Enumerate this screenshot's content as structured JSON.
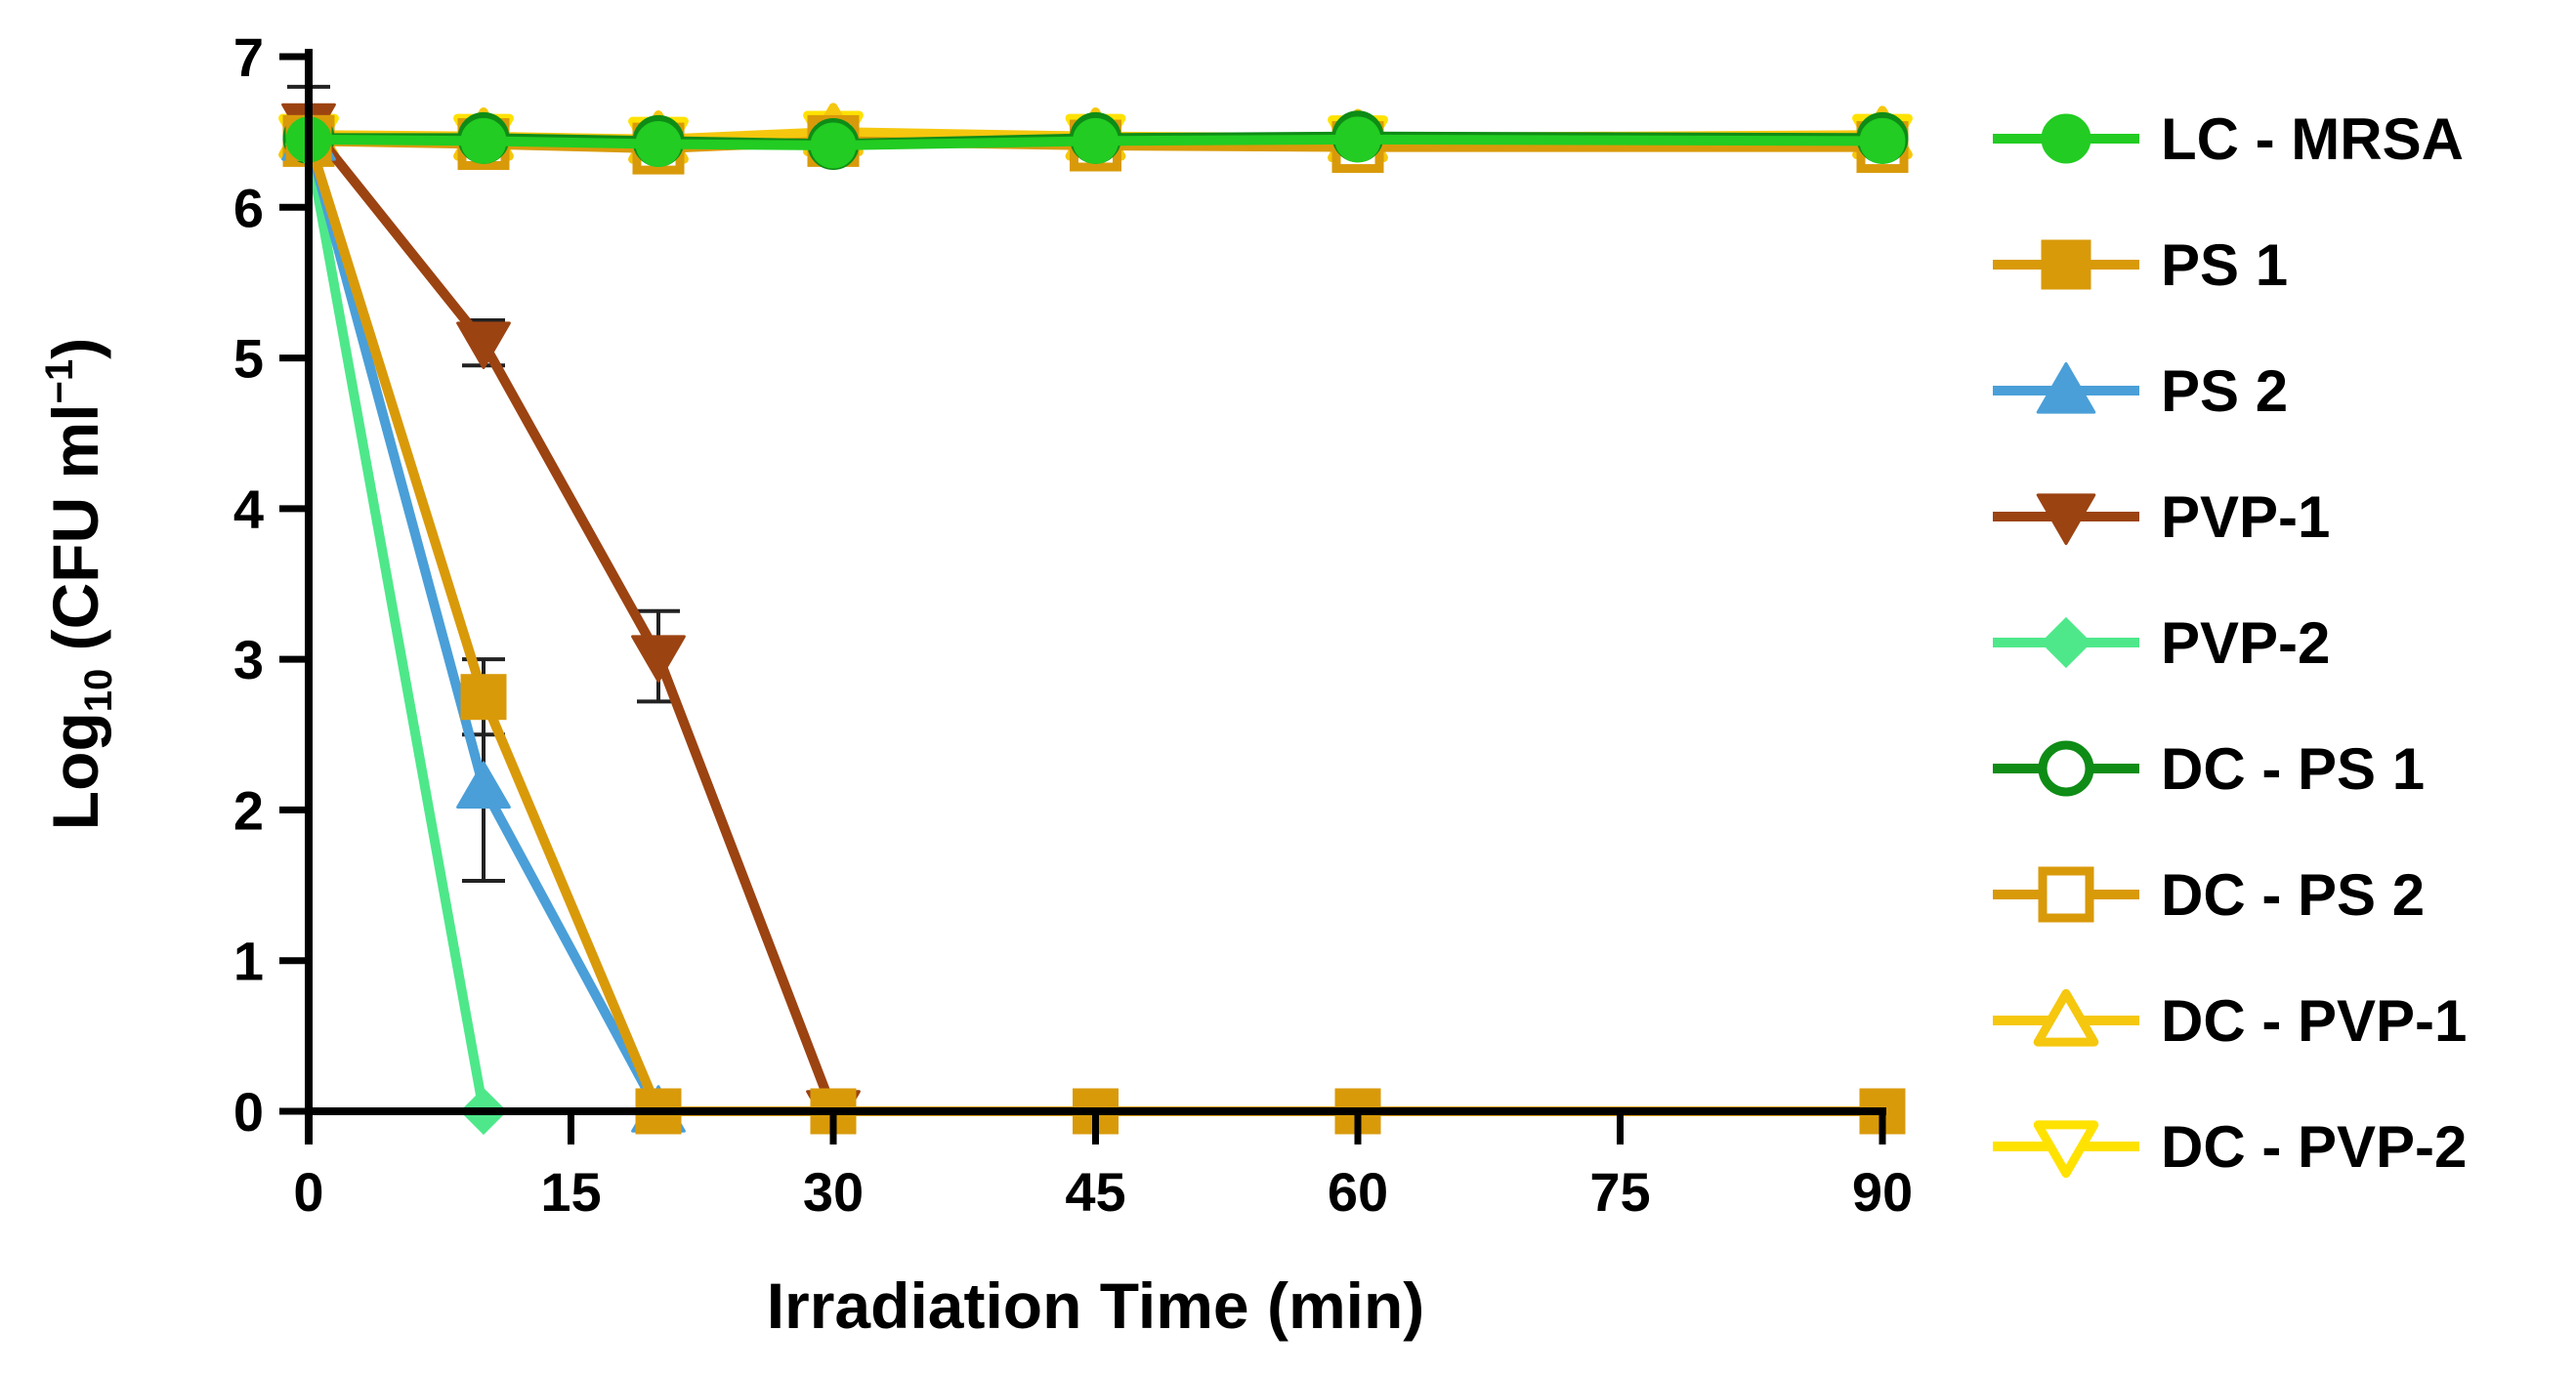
{
  "chart_data": {
    "type": "line",
    "title": "",
    "xlabel": "Irradiation Time (min)",
    "ylabel": {
      "main": "Log",
      "sub": "10",
      "rest": " (CFU ml",
      "sup": "−1",
      "end": ")"
    },
    "xlim": [
      0,
      90
    ],
    "ylim": [
      0,
      7
    ],
    "xticks": [
      0,
      15,
      30,
      45,
      60,
      75,
      90
    ],
    "yticks": [
      0,
      1,
      2,
      3,
      4,
      5,
      6,
      7
    ],
    "grid": false,
    "legend_position": "right",
    "series": [
      {
        "name": "LC - MRSA",
        "color": "#22cc22",
        "marker": "circle",
        "filled": true,
        "x": [
          0,
          10,
          20,
          30,
          45,
          60,
          90
        ],
        "y": [
          6.45,
          6.44,
          6.42,
          6.41,
          6.44,
          6.45,
          6.44
        ]
      },
      {
        "name": "PS 1",
        "color": "#d99a0a",
        "marker": "square",
        "filled": true,
        "x": [
          0,
          10,
          20,
          30,
          45,
          60,
          90
        ],
        "y": [
          6.46,
          2.75,
          0,
          0,
          0,
          0,
          0
        ],
        "err": [
          0,
          0.25,
          0,
          0,
          0,
          0,
          0
        ]
      },
      {
        "name": "PS 2",
        "color": "#4a9fd8",
        "marker": "triangle-up",
        "filled": true,
        "x": [
          0,
          10,
          20
        ],
        "y": [
          6.45,
          2.15,
          0
        ],
        "err": [
          0,
          0.62,
          0
        ]
      },
      {
        "name": "PVP-1",
        "color": "#9c4312",
        "marker": "triangle-down",
        "filled": true,
        "x": [
          0,
          10,
          20,
          30
        ],
        "y": [
          6.55,
          5.1,
          3.02,
          0
        ],
        "err": [
          0.25,
          0.15,
          0.3,
          0
        ]
      },
      {
        "name": "PVP-2",
        "color": "#4ee88a",
        "marker": "diamond",
        "filled": true,
        "x": [
          0,
          10
        ],
        "y": [
          6.42,
          0
        ]
      },
      {
        "name": "DC - PS 1",
        "color": "#0e8c16",
        "marker": "circle",
        "filled": false,
        "x": [
          0,
          10,
          20,
          30,
          45,
          60,
          90
        ],
        "y": [
          6.46,
          6.46,
          6.44,
          6.42,
          6.46,
          6.47,
          6.46
        ]
      },
      {
        "name": "DC - PS 2",
        "color": "#d99a0a",
        "marker": "square",
        "filled": false,
        "x": [
          0,
          10,
          20,
          30,
          45,
          60,
          90
        ],
        "y": [
          6.44,
          6.42,
          6.39,
          6.44,
          6.41,
          6.4,
          6.4
        ]
      },
      {
        "name": "DC - PVP-1",
        "color": "#f5c70e",
        "marker": "triangle-up",
        "filled": false,
        "x": [
          0,
          10,
          20,
          30,
          45,
          60,
          90
        ],
        "y": [
          6.48,
          6.47,
          6.45,
          6.5,
          6.47,
          6.46,
          6.48
        ]
      },
      {
        "name": "DC - PVP-2",
        "color": "#ffe200",
        "marker": "triangle-down",
        "filled": false,
        "x": [
          0,
          10,
          20,
          30,
          45,
          60,
          90
        ],
        "y": [
          6.46,
          6.46,
          6.44,
          6.48,
          6.46,
          6.45,
          6.46
        ]
      }
    ]
  }
}
